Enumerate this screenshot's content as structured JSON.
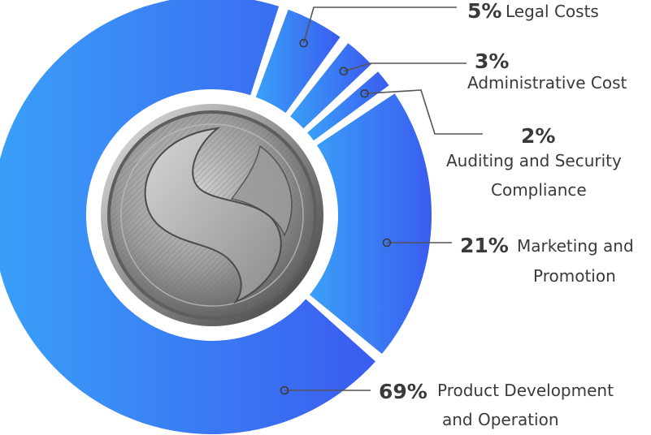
{
  "chart_data": {
    "type": "pie",
    "variant": "donut",
    "title": "",
    "legend": "none",
    "slices": [
      {
        "label_lines": [
          "Legal Costs"
        ],
        "value": 5,
        "pct_text": "5%"
      },
      {
        "label_lines": [
          "Administrative Cost"
        ],
        "value": 3,
        "pct_text": "3%"
      },
      {
        "label_lines": [
          "Auditing and Security",
          "Compliance"
        ],
        "value": 2,
        "pct_text": "2%"
      },
      {
        "label_lines": [
          "Marketing and",
          "Promotion"
        ],
        "value": 21,
        "pct_text": "21%"
      },
      {
        "label_lines": [
          "Product Development",
          "and Operation"
        ],
        "value": 69,
        "pct_text": "69%"
      }
    ],
    "colors": {
      "gradient_start": "#3aa0f8",
      "gradient_end": "#3a5cf0",
      "leader": "#555555",
      "text": "#3a3a3a"
    },
    "center_icon": "coin-logo-icon"
  }
}
